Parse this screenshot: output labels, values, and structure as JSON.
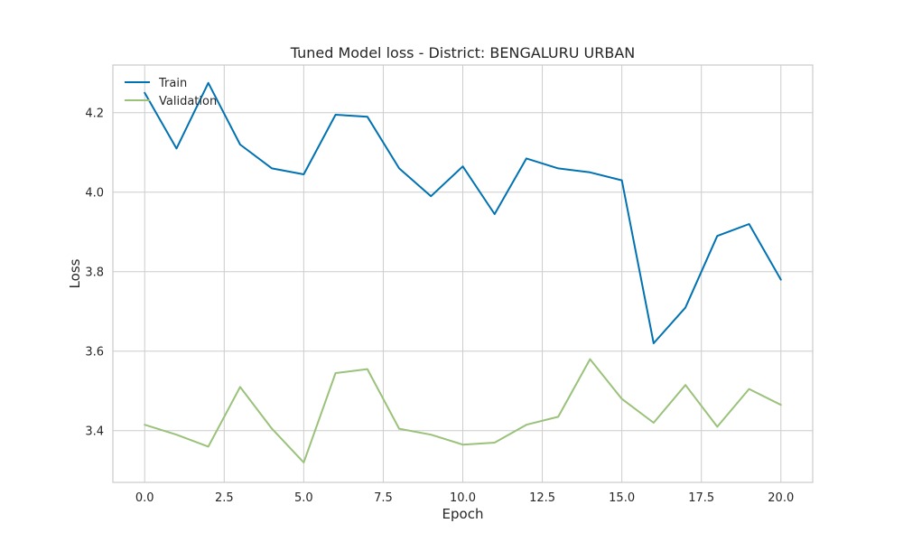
{
  "chart_data": {
    "type": "line",
    "title": "Tuned Model loss - District: BENGALURU URBAN",
    "xlabel": "Epoch",
    "ylabel": "Loss",
    "xlim": [
      -1.0,
      21.0
    ],
    "ylim": [
      3.27,
      4.32
    ],
    "x_ticks": [
      0.0,
      2.5,
      5.0,
      7.5,
      10.0,
      12.5,
      15.0,
      17.5,
      20.0
    ],
    "x_tick_labels": [
      "0.0",
      "2.5",
      "5.0",
      "7.5",
      "10.0",
      "12.5",
      "15.0",
      "17.5",
      "20.0"
    ],
    "y_ticks": [
      3.4,
      3.6,
      3.8,
      4.0,
      4.2
    ],
    "y_tick_labels": [
      "3.4",
      "3.6",
      "3.8",
      "4.0",
      "4.2"
    ],
    "grid": true,
    "legend_position": "top-left",
    "x": [
      0,
      1,
      2,
      3,
      4,
      5,
      6,
      7,
      8,
      9,
      10,
      11,
      12,
      13,
      14,
      15,
      16,
      17,
      18,
      19,
      20
    ],
    "series": [
      {
        "name": "Train",
        "color": "#0072b2",
        "values": [
          4.25,
          4.11,
          4.275,
          4.12,
          4.06,
          4.045,
          4.195,
          4.19,
          4.06,
          3.99,
          4.065,
          3.945,
          4.085,
          4.06,
          4.05,
          4.03,
          3.62,
          3.71,
          3.89,
          3.92,
          3.78
        ]
      },
      {
        "name": "Validation",
        "color": "#9ac27b",
        "values": [
          3.415,
          3.39,
          3.36,
          3.51,
          3.405,
          3.32,
          3.545,
          3.555,
          3.405,
          3.39,
          3.365,
          3.37,
          3.415,
          3.435,
          3.58,
          3.48,
          3.42,
          3.515,
          3.41,
          3.505,
          3.465
        ]
      }
    ]
  }
}
